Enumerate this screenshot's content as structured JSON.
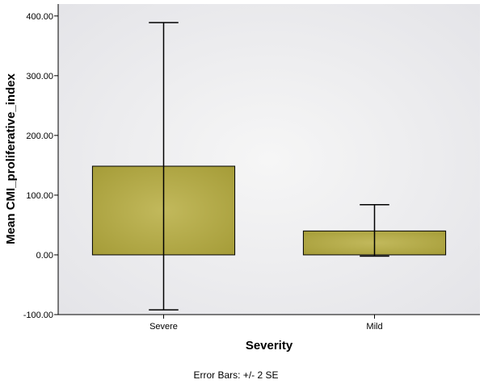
{
  "chart_data": {
    "type": "bar",
    "categories": [
      "Severe",
      "Mild"
    ],
    "values": [
      148.5,
      40
    ],
    "error_bars": {
      "lower": [
        -92,
        -2
      ],
      "upper": [
        389,
        84
      ]
    },
    "xlabel": "Severity",
    "ylabel": "Mean CMI_proliferative_index",
    "ylim": [
      -100,
      420
    ],
    "yticks": [
      -100,
      0,
      100,
      200,
      300,
      400
    ],
    "ytick_labels": [
      "-100.00",
      "0.00",
      "100.00",
      "200.00",
      "300.00",
      "400.00"
    ],
    "footnote": "Error Bars: +/- 2 SE",
    "bar_color": "#b0a842",
    "plot_background": "#ececec",
    "grid": false
  }
}
